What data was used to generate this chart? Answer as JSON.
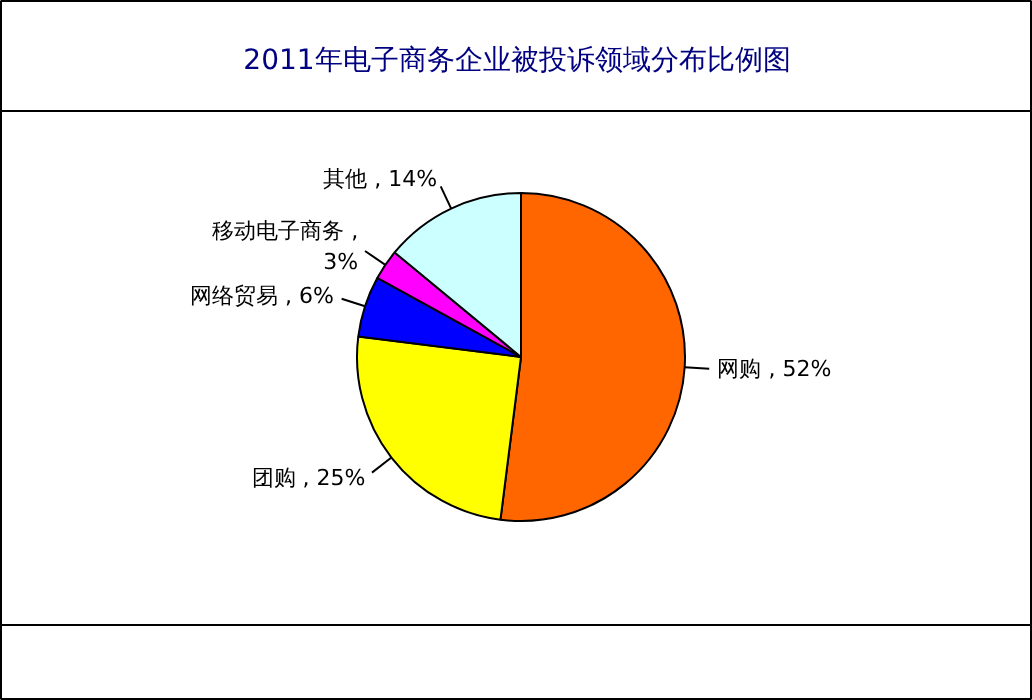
{
  "chart_data": {
    "type": "pie",
    "title": "2011年电子商务企业被投诉领域分布比例图",
    "categories": [
      "网购",
      "团购",
      "网络贸易",
      "移动电子商务",
      "其他"
    ],
    "values": [
      52,
      25,
      6,
      3,
      14
    ],
    "value_labels": [
      ", 52%",
      ", 25%",
      ", 6%",
      ", 3%",
      ", 14%"
    ],
    "colors": [
      "#ff6600",
      "#ffff00",
      "#0000ff",
      "#ff00ff",
      "#ccffff"
    ]
  }
}
